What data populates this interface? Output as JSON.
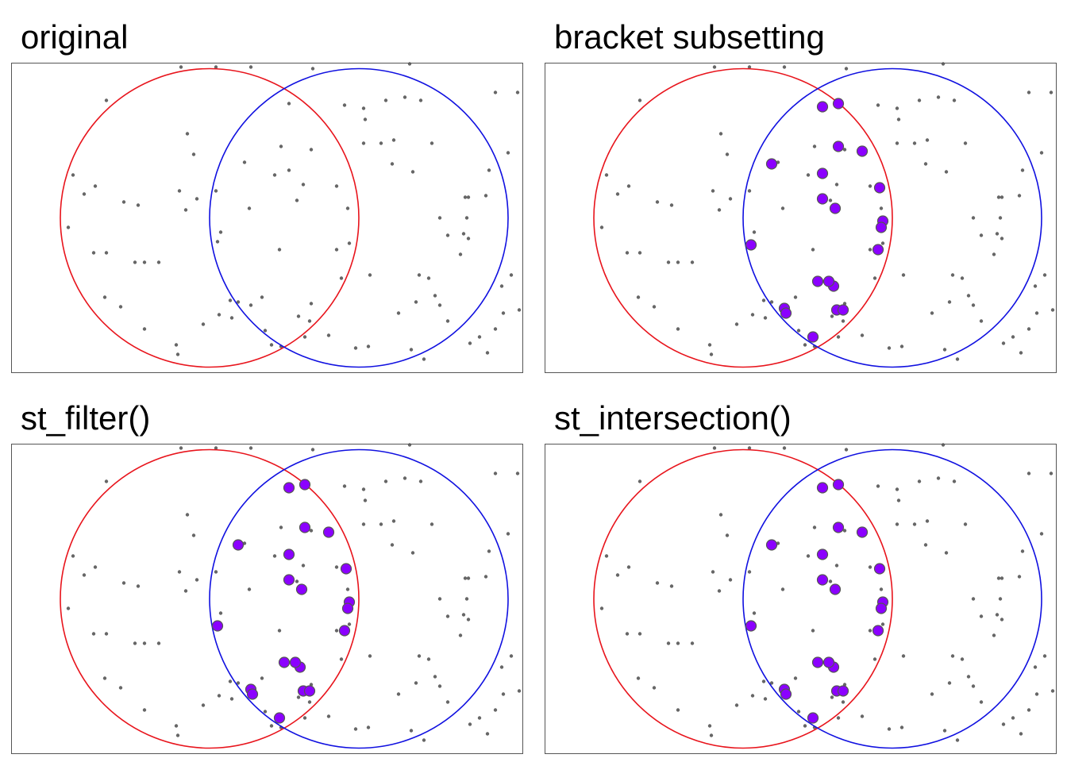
{
  "colors": {
    "circle_a": "#e8141c",
    "circle_b": "#1010e0",
    "point": "#555555",
    "selected_fill": "#8b00ff",
    "selected_stroke": "#555555",
    "frame": "#555555"
  },
  "chart_data": [
    {
      "type": "scatter",
      "title": "original",
      "xlim": [
        0,
        3.2
      ],
      "ylim": [
        -1,
        1
      ],
      "circles": [
        {
          "name": "",
          "center": [
            1.1,
            0
          ],
          "radius": 0.94,
          "color": "#e8141c"
        },
        {
          "name": "",
          "center": [
            2.04,
            0
          ],
          "radius": 0.94,
          "color": "#1010e0"
        }
      ],
      "points": [],
      "highlighted": []
    },
    {
      "type": "scatter",
      "title": "bracket subsetting",
      "xlim": [
        0,
        3.2
      ],
      "ylim": [
        -1,
        1
      ],
      "circles": [
        {
          "name": "",
          "center": [
            1.1,
            0
          ],
          "radius": 0.94,
          "color": "#e8141c"
        },
        {
          "name": "",
          "center": [
            2.04,
            0
          ],
          "radius": 0.94,
          "color": "#1010e0"
        }
      ],
      "points": [],
      "highlighted": []
    },
    {
      "type": "scatter",
      "title": "st_filter()",
      "xlim": [
        0,
        3.2
      ],
      "ylim": [
        -1,
        1
      ],
      "circles": [
        {
          "name": "",
          "center": [
            1.1,
            0
          ],
          "radius": 0.94,
          "color": "#e8141c"
        },
        {
          "name": "",
          "center": [
            2.04,
            0
          ],
          "radius": 0.94,
          "color": "#1010e0"
        }
      ],
      "points": [],
      "highlighted": []
    },
    {
      "type": "scatter",
      "title": "st_intersection()",
      "xlim": [
        0,
        3.2
      ],
      "ylim": [
        -1,
        1
      ],
      "circles": [
        {
          "name": "",
          "center": [
            1.1,
            0
          ],
          "radius": 0.94,
          "color": "#e8141c"
        },
        {
          "name": "",
          "center": [
            2.04,
            0
          ],
          "radius": 0.94,
          "color": "#1010e0"
        }
      ],
      "points": [],
      "highlighted": []
    }
  ]
}
